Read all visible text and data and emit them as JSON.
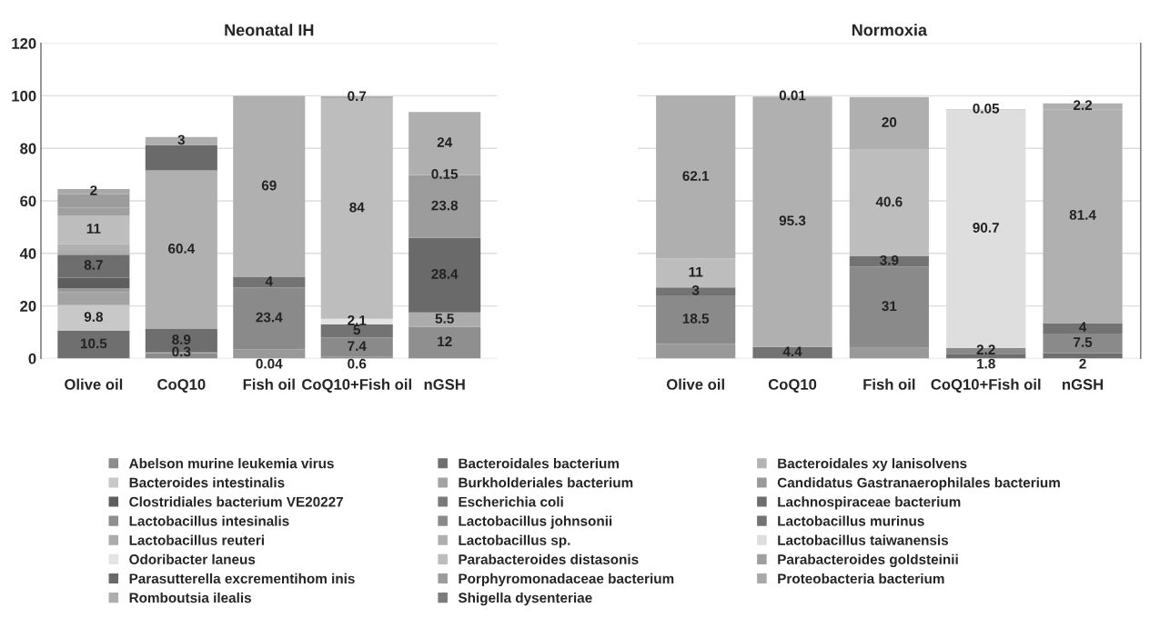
{
  "chart_data": [
    {
      "type": "bar",
      "stacked": true,
      "title": "Neonatal IH",
      "categories": [
        "Olive oil",
        "CoQ10",
        "Fish oil",
        "CoQ10+Fish oil",
        "nGSH"
      ],
      "ylim": [
        0,
        120
      ],
      "yticks": [
        0,
        20,
        40,
        60,
        80,
        100,
        120
      ],
      "grid": "y",
      "legend": "bottom",
      "series": [
        {
          "name": "Abelson murine leukemia virus",
          "color": "#8c8c8c",
          "values": [
            null,
            2,
            null,
            null,
            null
          ],
          "value_labels": [
            null,
            null,
            null,
            null,
            null
          ]
        },
        {
          "name": "Bacteroidales bacterium",
          "color": "#6f6f6f",
          "values": [
            10.5,
            null,
            null,
            null,
            null
          ],
          "value_labels": [
            "10.5",
            null,
            null,
            null,
            null
          ]
        },
        {
          "name": "Bacteroidales xy lanisolvens",
          "color": "#b4b4b4",
          "values": [
            null,
            null,
            0.04,
            null,
            null
          ],
          "value_labels": [
            null,
            null,
            "0.04",
            null,
            null
          ]
        },
        {
          "name": "Bacteroides intestinalis",
          "color": "#c8c8c8",
          "values": [
            9.8,
            null,
            null,
            null,
            null
          ],
          "value_labels": [
            "9.8",
            null,
            null,
            null,
            null
          ]
        },
        {
          "name": "Burkholderiales bacterium",
          "color": "#a3a3a3",
          "values": [
            5,
            0.3,
            null,
            null,
            null
          ],
          "value_labels": [
            null,
            "0.3",
            null,
            null,
            null
          ]
        },
        {
          "name": "Candidatus Gastranaerophilales bacterium",
          "color": "#999999",
          "values": [
            1.5,
            null,
            3.5,
            null,
            null
          ],
          "value_labels": [
            null,
            null,
            null,
            null,
            null
          ]
        },
        {
          "name": "Clostridiales bacterium VE20227",
          "color": "#5e5e5e",
          "values": [
            4,
            null,
            null,
            null,
            null
          ],
          "value_labels": [
            null,
            null,
            null,
            null,
            null
          ]
        },
        {
          "name": "Escherichia coli",
          "color": "#7a7a7a",
          "values": [
            null,
            null,
            null,
            null,
            null
          ],
          "value_labels": [
            null,
            null,
            null,
            null,
            null
          ]
        },
        {
          "name": "Lachnospiraceae bacterium",
          "color": "#6e6e6e",
          "values": [
            8.7,
            8.9,
            null,
            null,
            null
          ],
          "value_labels": [
            "8.7",
            "8.9",
            null,
            null,
            null
          ]
        },
        {
          "name": "Lactobacillus intesinalis",
          "color": "#8f8f8f",
          "values": [
            null,
            null,
            null,
            0.6,
            12
          ],
          "value_labels": [
            null,
            null,
            null,
            "0.6",
            "12"
          ]
        },
        {
          "name": "Lactobacillus johnsonii",
          "color": "#8a8a8a",
          "values": [
            null,
            null,
            23.4,
            7.4,
            null
          ],
          "value_labels": [
            null,
            null,
            "23.4",
            "7.4",
            null
          ]
        },
        {
          "name": "Lactobacillus murinus",
          "color": "#737373",
          "values": [
            null,
            null,
            4,
            5,
            null
          ],
          "value_labels": [
            null,
            null,
            "4",
            "5",
            null
          ]
        },
        {
          "name": "Lactobacillus reuteri",
          "color": "#acacac",
          "values": [
            1.5,
            null,
            null,
            null,
            5.5
          ],
          "value_labels": [
            null,
            null,
            null,
            null,
            "5.5"
          ]
        },
        {
          "name": "Lactobacillus sp.",
          "color": "#b0b0b0",
          "values": [
            2.5,
            60.4,
            69,
            null,
            null
          ],
          "value_labels": [
            null,
            "60.4",
            "69",
            null,
            null
          ]
        },
        {
          "name": "Lactobacillus taiwanensis",
          "color": "#dedede",
          "values": [
            null,
            null,
            null,
            null,
            null
          ],
          "value_labels": [
            null,
            null,
            null,
            null,
            null
          ]
        },
        {
          "name": "Odoribacter laneus",
          "color": "#e4e4e4",
          "values": [
            null,
            null,
            null,
            2.1,
            null
          ],
          "value_labels": [
            null,
            null,
            null,
            "2.1",
            null
          ]
        },
        {
          "name": "Parabacteroides distasonis",
          "color": "#bdbdbd",
          "values": [
            11,
            null,
            null,
            84,
            null
          ],
          "value_labels": [
            "11",
            null,
            null,
            "84",
            null
          ]
        },
        {
          "name": "Parabacteroides goldsteinii",
          "color": "#a0a0a0",
          "values": [
            3,
            null,
            null,
            null,
            null
          ],
          "value_labels": [
            null,
            null,
            null,
            null,
            null
          ]
        },
        {
          "name": "Parasutterella excrementihom inis",
          "color": "#6a6a6a",
          "values": [
            null,
            9.7,
            null,
            null,
            28.4
          ],
          "value_labels": [
            null,
            null,
            null,
            null,
            "28.4"
          ]
        },
        {
          "name": "Porphyromonadaceae bacterium",
          "color": "#9c9c9c",
          "values": [
            5,
            null,
            null,
            null,
            23.8
          ],
          "value_labels": [
            null,
            null,
            null,
            null,
            "23.8"
          ]
        },
        {
          "name": "Proteobacteria bacterium",
          "color": "#a8a8a8",
          "values": [
            2,
            null,
            null,
            null,
            0.15
          ],
          "value_labels": [
            "2",
            null,
            null,
            null,
            "0.15"
          ]
        },
        {
          "name": "Romboutsia ilealis",
          "color": "#afafaf",
          "values": [
            null,
            3,
            null,
            0.7,
            24
          ],
          "value_labels": [
            null,
            "3",
            null,
            "0.7",
            "24"
          ]
        },
        {
          "name": "Shigella dysenteriae",
          "color": "#7c7c7c",
          "values": [
            null,
            null,
            null,
            null,
            null
          ],
          "value_labels": [
            null,
            null,
            null,
            null,
            null
          ]
        }
      ]
    },
    {
      "type": "bar",
      "stacked": true,
      "title": "Normoxia",
      "categories": [
        "Olive oil",
        "CoQ10",
        "Fish oil",
        "CoQ10+Fish oil",
        "nGSH"
      ],
      "ylim": [
        0,
        120
      ],
      "yticks": [
        0,
        20,
        40,
        60,
        80,
        100,
        120
      ],
      "grid": "y",
      "tick_labels": "x",
      "series": [
        {
          "color": "#999999",
          "values": [
            5.5,
            null,
            4,
            null,
            null
          ],
          "value_labels": [
            null,
            null,
            null,
            null,
            null
          ]
        },
        {
          "color": "#6e6e6e",
          "values": [
            null,
            null,
            null,
            1.8,
            2
          ],
          "value_labels": [
            null,
            null,
            null,
            "1.8",
            "2"
          ]
        },
        {
          "color": "#8a8a8a",
          "values": [
            18.5,
            null,
            31,
            2.2,
            7.5
          ],
          "value_labels": [
            "18.5",
            null,
            "31",
            "2.2",
            "7.5"
          ]
        },
        {
          "color": "#737373",
          "values": [
            3,
            4.4,
            3.9,
            null,
            4
          ],
          "value_labels": [
            "3",
            "4.4",
            "3.9",
            null,
            "4"
          ]
        },
        {
          "color": "#b0b0b0",
          "values": [
            null,
            95.3,
            null,
            null,
            81.4
          ],
          "value_labels": [
            null,
            "95.3",
            null,
            null,
            "81.4"
          ]
        },
        {
          "color": "#dedede",
          "values": [
            null,
            null,
            null,
            90.7,
            null
          ],
          "value_labels": [
            null,
            null,
            null,
            "90.7",
            null
          ]
        },
        {
          "color": "#bdbdbd",
          "values": [
            11,
            null,
            40.6,
            null,
            null
          ],
          "value_labels": [
            "11",
            null,
            "40.6",
            null,
            null
          ]
        },
        {
          "color": "#6a6a6a",
          "values": [
            null,
            null,
            null,
            0.05,
            null
          ],
          "value_labels": [
            null,
            null,
            null,
            "0.05",
            null
          ]
        },
        {
          "color": "#afafaf",
          "values": [
            62.1,
            0.01,
            20,
            null,
            2.2
          ],
          "value_labels": [
            "62.1",
            "0.01",
            "20",
            null,
            "2.2"
          ]
        }
      ]
    }
  ]
}
